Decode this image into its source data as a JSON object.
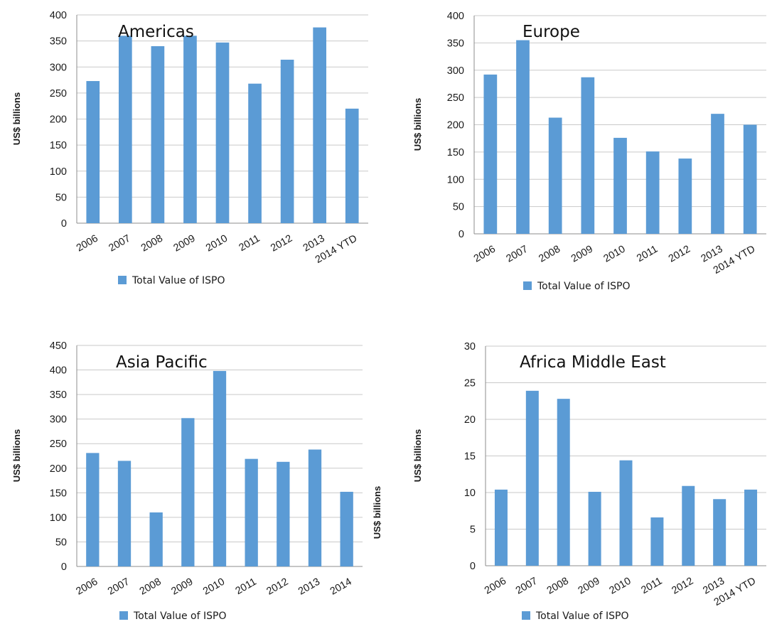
{
  "colors": {
    "bar": "#5B9BD5",
    "grid": "#c9c9c9",
    "axis": "#8c8c8c"
  },
  "chart_data": [
    {
      "type": "bar",
      "title": "Americas",
      "ylabel": "US$ billions",
      "ylim": [
        0,
        400
      ],
      "yticks": [
        0,
        50,
        100,
        150,
        200,
        250,
        300,
        350,
        400
      ],
      "categories": [
        "2006",
        "2007",
        "2008",
        "2009",
        "2010",
        "2011",
        "2012",
        "2013",
        "2014 YTD"
      ],
      "series": [
        {
          "name": "Total Value of ISPO",
          "values": [
            273,
            360,
            340,
            360,
            347,
            268,
            314,
            376,
            220
          ]
        }
      ],
      "grid": true,
      "legend_position": "bottom"
    },
    {
      "type": "bar",
      "title": "Europe",
      "ylabel": "US$ billions",
      "ylim": [
        0,
        400
      ],
      "yticks": [
        0,
        50,
        100,
        150,
        200,
        250,
        300,
        350,
        400
      ],
      "categories": [
        "2006",
        "2007",
        "2008",
        "2009",
        "2010",
        "2011",
        "2012",
        "2013",
        "2014 YTD"
      ],
      "series": [
        {
          "name": "Total Value of ISPO",
          "values": [
            292,
            355,
            213,
            287,
            176,
            151,
            138,
            220,
            200
          ]
        }
      ],
      "grid": true,
      "legend_position": "bottom"
    },
    {
      "type": "bar",
      "title": "Asia Pacific",
      "ylabel": "US$ billions",
      "ylim": [
        0,
        450
      ],
      "yticks": [
        0,
        50,
        100,
        150,
        200,
        250,
        300,
        350,
        400,
        450
      ],
      "categories": [
        "2006",
        "2007",
        "2008",
        "2009",
        "2010",
        "2011",
        "2012",
        "2013",
        "2014"
      ],
      "series": [
        {
          "name": "Total Value of ISPO",
          "values": [
            231,
            215,
            110,
            302,
            398,
            219,
            213,
            238,
            152
          ]
        }
      ],
      "grid": true,
      "legend_position": "bottom"
    },
    {
      "type": "bar",
      "title": "Africa Middle East",
      "ylabel": "US$ billions",
      "ylim": [
        0,
        30
      ],
      "yticks": [
        0,
        5,
        10,
        15,
        20,
        25,
        30
      ],
      "categories": [
        "2006",
        "2007",
        "2008",
        "2009",
        "2010",
        "2011",
        "2012",
        "2013",
        "2014 YTD"
      ],
      "series": [
        {
          "name": "Total Value of ISPO",
          "values": [
            10.4,
            23.9,
            22.8,
            10.1,
            14.4,
            6.6,
            10.9,
            9.1,
            10.4
          ]
        }
      ],
      "grid": true,
      "legend_position": "bottom"
    }
  ]
}
